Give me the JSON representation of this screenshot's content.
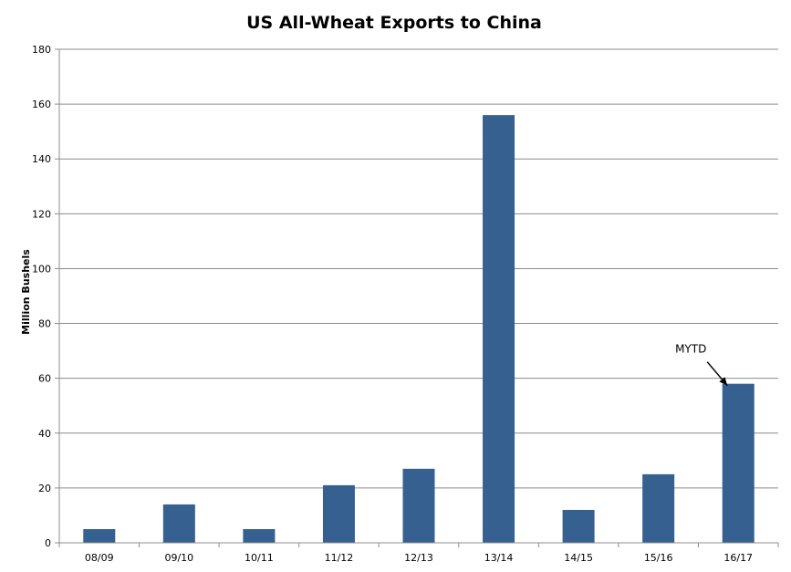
{
  "chart_data": {
    "type": "bar",
    "title": "US All-Wheat Exports to China",
    "xlabel": "",
    "ylabel": "Million Bushels",
    "categories": [
      "08/09",
      "09/10",
      "10/11",
      "11/12",
      "12/13",
      "13/14",
      "14/15",
      "15/16",
      "16/17"
    ],
    "values": [
      5,
      14,
      5,
      21,
      27,
      156,
      12,
      25,
      58
    ],
    "ylim": [
      0,
      180
    ],
    "yticks": [
      0,
      20,
      40,
      60,
      80,
      100,
      120,
      140,
      160,
      180
    ],
    "grid": "horizontal",
    "bar_color": "#35608F",
    "annotations": [
      {
        "text": "MYTD",
        "category": "16/17"
      }
    ]
  }
}
